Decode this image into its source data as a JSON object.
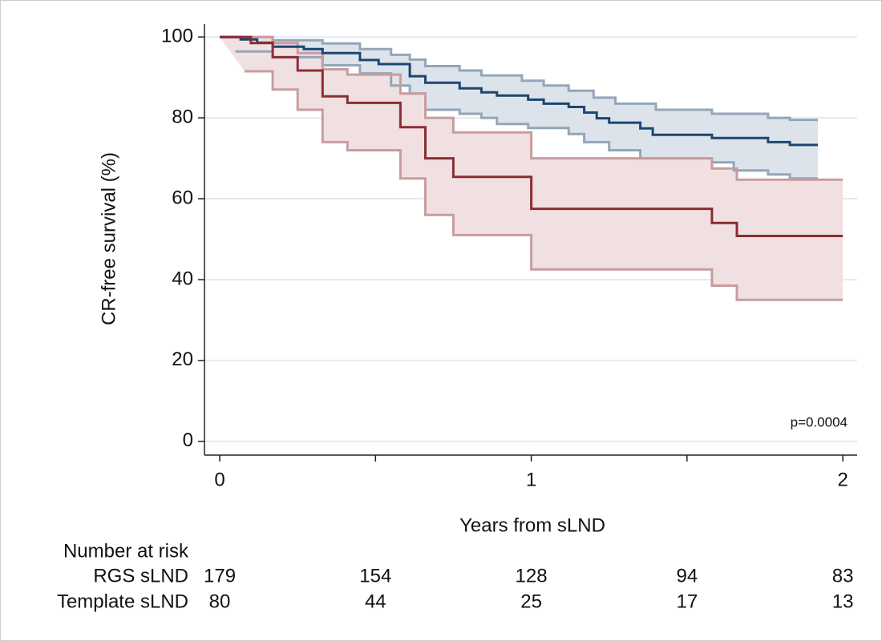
{
  "chart_data": {
    "type": "km",
    "y_label": "CR-free survival (%)",
    "x_label": "Years from sLND",
    "annotation": "p=0.0004",
    "xlim": [
      -0.049,
      2.046
    ],
    "ylim": [
      -3.4,
      103.2
    ],
    "xticks": [
      0,
      1,
      2
    ],
    "minor_xticks": [
      0.5,
      1.5
    ],
    "yticks": [
      0,
      20,
      40,
      60,
      80,
      100
    ],
    "grid": true,
    "risk_title": "Number at risk",
    "risk_x": [
      0,
      0.5,
      1,
      1.5,
      2
    ],
    "series": [
      {
        "name": "RGS sLND",
        "color": "#1c4673",
        "ci_color": "#93a6ba",
        "ci_fill": "#dde3ea",
        "x": [
          0,
          0.067,
          0.12,
          0.17,
          0.27,
          0.33,
          0.45,
          0.51,
          0.61,
          0.66,
          0.77,
          0.84,
          0.89,
          0.99,
          1.04,
          1.12,
          1.17,
          1.21,
          1.25,
          1.35,
          1.39,
          1.58,
          1.76,
          1.83,
          1.92
        ],
        "y": [
          100,
          99.4,
          98.6,
          97.6,
          97.0,
          96.0,
          94.3,
          93.3,
          90.3,
          88.7,
          87.3,
          86.3,
          85.5,
          84.5,
          83.5,
          82.7,
          81.3,
          79.9,
          78.8,
          77.4,
          75.8,
          75,
          74,
          73.3,
          73.3
        ],
        "upper": {
          "x": [
            0,
            0.17,
            0.33,
            0.45,
            0.55,
            0.61,
            0.66,
            0.77,
            0.84,
            0.97,
            1.04,
            1.12,
            1.2,
            1.27,
            1.4,
            1.58,
            1.76,
            1.83,
            1.92
          ],
          "y": [
            100,
            99.2,
            98.4,
            97,
            95.6,
            94.4,
            92.8,
            91.7,
            90.5,
            89.2,
            88,
            86.7,
            85,
            83.5,
            82,
            81,
            80,
            79.5,
            79.5
          ]
        },
        "lower": {
          "x": [
            0.05,
            0.17,
            0.33,
            0.45,
            0.55,
            0.61,
            0.66,
            0.77,
            0.84,
            0.89,
            0.99,
            1.12,
            1.17,
            1.25,
            1.35,
            1.58,
            1.65,
            1.76,
            1.83,
            1.92
          ],
          "y": [
            96.4,
            95,
            93,
            91,
            88,
            86,
            82,
            81,
            80,
            78.5,
            77.5,
            76,
            74,
            72,
            70,
            69,
            67,
            66,
            65,
            65
          ]
        },
        "at_risk": [
          179,
          154,
          128,
          94,
          83
        ]
      },
      {
        "name": "Template sLND",
        "color": "#8b2d36",
        "ci_color": "#c99c9f",
        "ci_fill": "#f1e0e1",
        "x": [
          0,
          0.1,
          0.17,
          0.25,
          0.33,
          0.41,
          0.58,
          0.66,
          0.75,
          1.0,
          1.58,
          1.66,
          2
        ],
        "y": [
          100,
          98.5,
          95,
          91.7,
          85.3,
          83.7,
          77.7,
          70,
          65.4,
          57.5,
          54,
          50.8,
          50.8
        ],
        "upper": {
          "x": [
            0,
            0.17,
            0.25,
            0.33,
            0.41,
            0.58,
            0.66,
            0.75,
            1.0,
            1.58,
            1.66,
            2
          ],
          "y": [
            100,
            98.5,
            96,
            92,
            90.7,
            86,
            80,
            76.4,
            70,
            67.5,
            64.7,
            64.7
          ]
        },
        "lower": {
          "x": [
            0.08,
            0.17,
            0.25,
            0.33,
            0.41,
            0.58,
            0.66,
            0.75,
            1.0,
            1.58,
            1.66,
            2
          ],
          "y": [
            91.5,
            87,
            82,
            74,
            72,
            65,
            56,
            51,
            42.5,
            38.5,
            35,
            35
          ]
        },
        "at_risk": [
          80,
          44,
          25,
          17,
          13
        ]
      }
    ]
  }
}
